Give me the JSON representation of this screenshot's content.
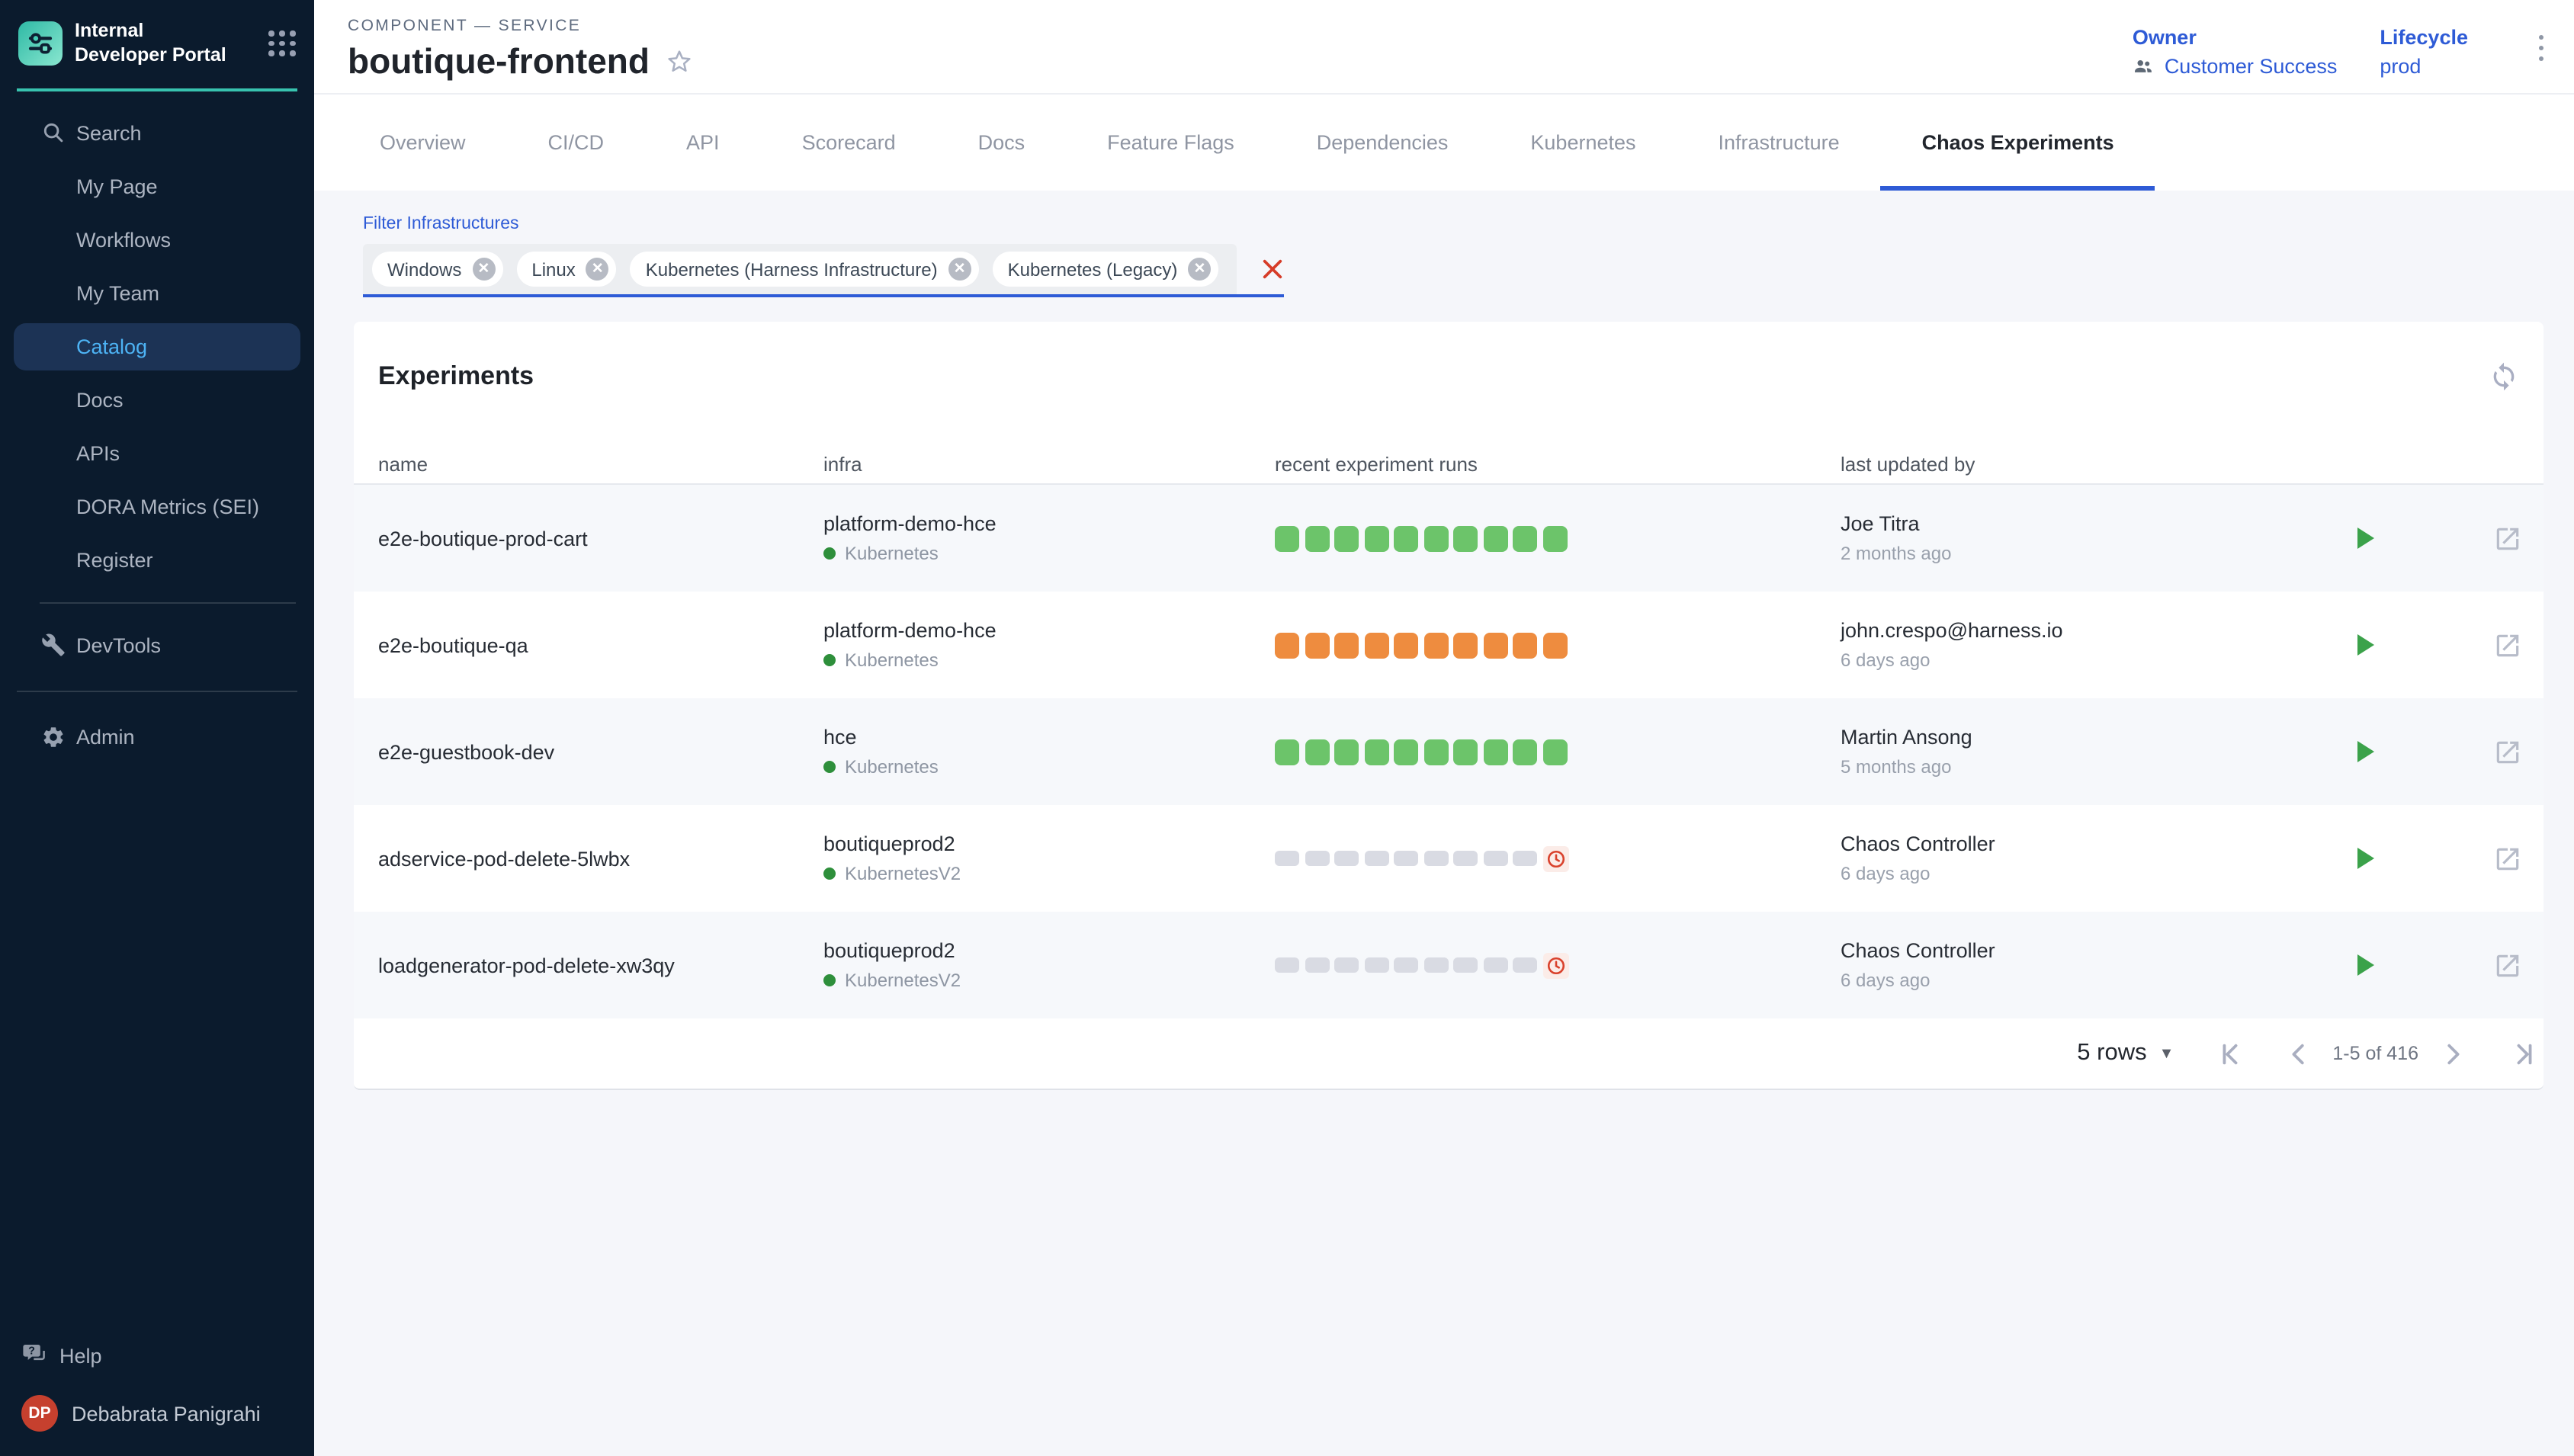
{
  "app": {
    "title": "Internal Developer Portal"
  },
  "sidebar": {
    "items": [
      {
        "label": "Search",
        "icon": "search-icon"
      },
      {
        "label": "My Page"
      },
      {
        "label": "Workflows"
      },
      {
        "label": "My Team"
      },
      {
        "label": "Catalog",
        "active": true
      },
      {
        "label": "Docs"
      },
      {
        "label": "APIs"
      },
      {
        "label": "DORA Metrics (SEI)"
      },
      {
        "label": "Register"
      },
      {
        "divider": true
      },
      {
        "label": "DevTools",
        "icon": "wrench-icon"
      }
    ],
    "admin": {
      "label": "Admin",
      "icon": "gear-icon"
    },
    "help": {
      "label": "Help",
      "icon": "help-chat-icon"
    },
    "user": {
      "initials": "DP",
      "name": "Debabrata Panigrahi"
    }
  },
  "header": {
    "eyebrow": "COMPONENT — SERVICE",
    "title": "boutique-frontend",
    "owner_label": "Owner",
    "owner_value": "Customer Success",
    "lifecycle_label": "Lifecycle",
    "lifecycle_value": "prod"
  },
  "tabs": [
    {
      "label": "Overview"
    },
    {
      "label": "CI/CD"
    },
    {
      "label": "API"
    },
    {
      "label": "Scorecard"
    },
    {
      "label": "Docs"
    },
    {
      "label": "Feature Flags"
    },
    {
      "label": "Dependencies"
    },
    {
      "label": "Kubernetes"
    },
    {
      "label": "Infrastructure"
    },
    {
      "label": "Chaos Experiments",
      "active": true
    }
  ],
  "filter": {
    "label": "Filter Infrastructures",
    "chips": [
      "Windows",
      "Linux",
      "Kubernetes (Harness Infrastructure)",
      "Kubernetes (Legacy)"
    ]
  },
  "experiments": {
    "title": "Experiments",
    "columns": [
      "name",
      "infra",
      "recent experiment runs",
      "last updated by"
    ],
    "rows": [
      {
        "name": "e2e-boutique-prod-cart",
        "infra": "platform-demo-hce",
        "infra_type": "Kubernetes",
        "runs": {
          "status": "passed",
          "squares": 10,
          "trailing_icon": null
        },
        "updated_by": "Joe Titra",
        "updated_at": "2 months ago"
      },
      {
        "name": "e2e-boutique-qa",
        "infra": "platform-demo-hce",
        "infra_type": "Kubernetes",
        "runs": {
          "status": "failed",
          "squares": 10,
          "trailing_icon": null
        },
        "updated_by": "john.crespo@harness.io",
        "updated_at": "6 days ago"
      },
      {
        "name": "e2e-guestbook-dev",
        "infra": "hce",
        "infra_type": "Kubernetes",
        "runs": {
          "status": "passed",
          "squares": 10,
          "trailing_icon": null
        },
        "updated_by": "Martin Ansong",
        "updated_at": "5 months ago"
      },
      {
        "name": "adservice-pod-delete-5lwbx",
        "infra": "boutiqueprod2",
        "infra_type": "KubernetesV2",
        "runs": {
          "status": "pending",
          "squares": 9,
          "trailing_icon": "clock"
        },
        "updated_by": "Chaos Controller",
        "updated_at": "6 days ago"
      },
      {
        "name": "loadgenerator-pod-delete-xw3qy",
        "infra": "boutiqueprod2",
        "infra_type": "KubernetesV2",
        "runs": {
          "status": "pending",
          "squares": 9,
          "trailing_icon": "clock"
        },
        "updated_by": "Chaos Controller",
        "updated_at": "6 days ago"
      }
    ],
    "pagination": {
      "rows_per_page": "5 rows",
      "range": "1-5 of 416"
    }
  },
  "colors": {
    "brand_teal": "#38c3af",
    "accent_blue": "#2e5bd6",
    "success_green": "#6cc46a",
    "failed_orange": "#ee8c3f",
    "pending_grey": "#d9dbe3",
    "error_red": "#d63c28",
    "active_nav_blue": "#4db3f4",
    "avatar_red": "#c6402e",
    "sidebar_navy": "#0b1b2d"
  }
}
